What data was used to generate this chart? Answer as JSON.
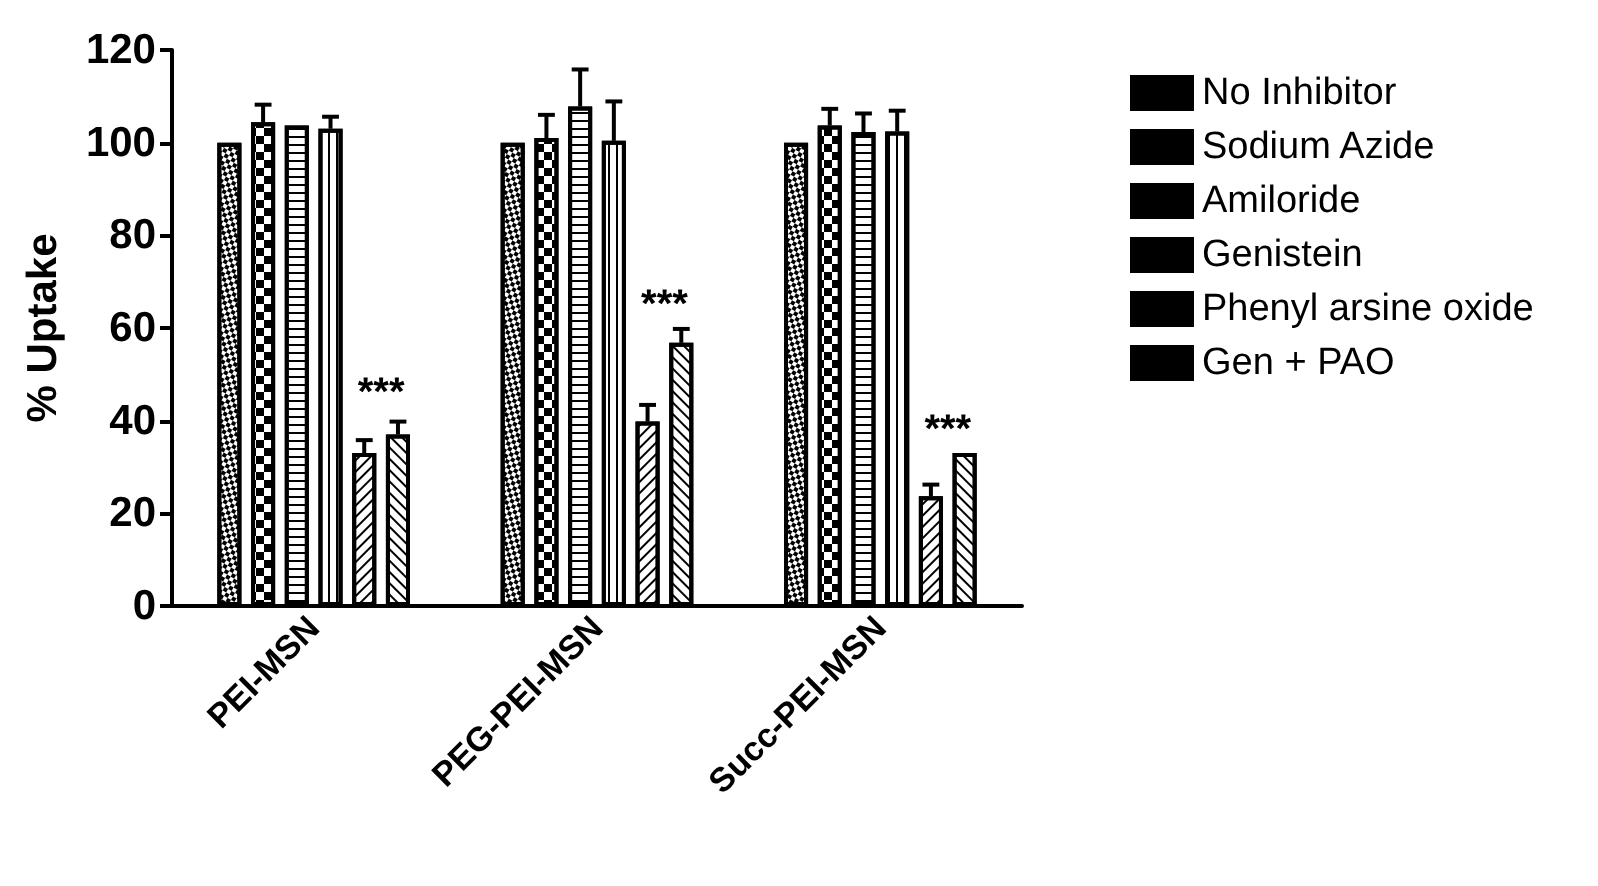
{
  "chart_data": {
    "type": "bar",
    "ylabel": "% Uptake",
    "categories": [
      "PEI-MSN",
      "PEG-PEI-MSN",
      "Succ-PEI-MSN"
    ],
    "series": [
      {
        "name": "No Inhibitor",
        "color": "#000000",
        "values": [
          100,
          100,
          100
        ]
      },
      {
        "name": "Sodium Azide",
        "color": "#000000",
        "values": [
          104.4,
          101,
          103.7
        ],
        "errors": [
          3.8,
          5,
          3.6
        ]
      },
      {
        "name": "Amiloride",
        "color": "#000000",
        "values": [
          103.7,
          107.8,
          102.3
        ],
        "errors": [
          null,
          8,
          4
        ]
      },
      {
        "name": "Genistein",
        "color": "#000000",
        "values": [
          103,
          100.4,
          102.4
        ],
        "errors": [
          2.6,
          8.5,
          4.5
        ]
      },
      {
        "name": "Phenyl arsine oxide",
        "color": "#000000",
        "values": [
          33,
          39.8,
          23.7
        ],
        "errors": [
          2.8,
          3.6,
          2.5
        ]
      },
      {
        "name": "Gen + PAO",
        "color": "#000000",
        "values": [
          37,
          56.8,
          33
        ],
        "errors": [
          2.8,
          3,
          null
        ]
      }
    ],
    "annotations": [
      {
        "text": "***",
        "x": "PEI-MSN",
        "y": 46
      },
      {
        "text": "***",
        "x": "PEG-PEI-MSN",
        "y": 65
      },
      {
        "text": "***",
        "x": "Succ-PEI-MSN",
        "y": 38
      }
    ],
    "ylim": [
      0,
      120
    ],
    "yticks": [
      0,
      20,
      40,
      60,
      80,
      100,
      120
    ],
    "grid": false,
    "legend": "right"
  }
}
